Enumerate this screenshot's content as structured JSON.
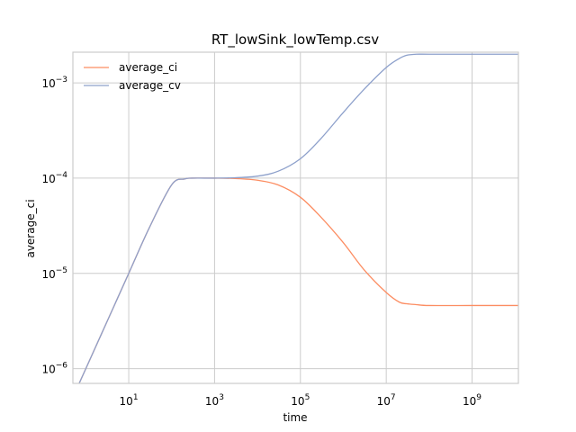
{
  "chart_data": {
    "type": "line",
    "title": "RT_lowSink_lowTemp.csv",
    "xlabel": "time",
    "ylabel": "average_ci",
    "x_scale": "log",
    "y_scale": "log",
    "xlim": [
      0.5,
      12000000000
    ],
    "ylim": [
      7e-07,
      0.0021
    ],
    "grid": true,
    "legend": "top-left",
    "x_ticks": [
      {
        "value": 10,
        "base": "10",
        "exp": "1"
      },
      {
        "value": 1000,
        "base": "10",
        "exp": "3"
      },
      {
        "value": 100000,
        "base": "10",
        "exp": "5"
      },
      {
        "value": 10000000,
        "base": "10",
        "exp": "7"
      },
      {
        "value": 1000000000,
        "base": "10",
        "exp": "9"
      }
    ],
    "y_ticks": [
      {
        "value": 1e-06,
        "base": "10",
        "exp": "−6"
      },
      {
        "value": 1e-05,
        "base": "10",
        "exp": "−5"
      },
      {
        "value": 0.0001,
        "base": "10",
        "exp": "−4"
      },
      {
        "value": 0.001,
        "base": "10",
        "exp": "−3"
      }
    ],
    "series": [
      {
        "name": "average_ci",
        "color": "#fc8d62",
        "x": [
          0.5,
          1,
          3,
          10,
          30,
          100,
          200,
          300,
          1000,
          3000,
          10000,
          30000,
          100000,
          300000,
          1000000,
          3000000,
          10000000,
          20000000,
          30000000,
          50000000,
          100000000,
          1000000000,
          12000000000
        ],
        "y": [
          5e-07,
          1e-06,
          3e-06,
          1e-05,
          3e-05,
          8.5e-05,
          9.8e-05,
          0.0001,
          0.0001,
          9.9e-05,
          9.5e-05,
          8.5e-05,
          6.3e-05,
          3.9e-05,
          2.1e-05,
          1.1e-05,
          6.3e-06,
          5e-06,
          4.8e-06,
          4.7e-06,
          4.6e-06,
          4.6e-06,
          4.6e-06
        ]
      },
      {
        "name": "average_cv",
        "color": "#8da0cb",
        "x": [
          0.5,
          1,
          3,
          10,
          30,
          100,
          200,
          300,
          1000,
          3000,
          10000,
          30000,
          100000,
          300000,
          1000000,
          3000000,
          10000000,
          20000000,
          30000000,
          50000000,
          100000000,
          1000000000,
          12000000000
        ],
        "y": [
          5e-07,
          1e-06,
          3e-06,
          1e-05,
          3e-05,
          8.5e-05,
          9.8e-05,
          0.0001,
          0.0001,
          0.000101,
          0.000105,
          0.000118,
          0.00016,
          0.00026,
          0.00049,
          0.00085,
          0.00145,
          0.0018,
          0.00195,
          0.002,
          0.002,
          0.002,
          0.002
        ]
      }
    ]
  }
}
